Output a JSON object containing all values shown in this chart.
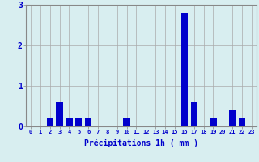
{
  "hours": [
    0,
    1,
    2,
    3,
    4,
    5,
    6,
    7,
    8,
    9,
    10,
    11,
    12,
    13,
    14,
    15,
    16,
    17,
    18,
    19,
    20,
    21,
    22,
    23
  ],
  "values": [
    0,
    0,
    0.2,
    0.6,
    0.2,
    0.2,
    0.2,
    0,
    0,
    0,
    0.2,
    0,
    0,
    0,
    0,
    0,
    2.8,
    0.6,
    0,
    0.2,
    0,
    0.4,
    0.2,
    0
  ],
  "bar_color": "#0000cc",
  "background_color": "#d8eef0",
  "grid_color": "#aaaaaa",
  "xlabel": "Précipitations 1h ( mm )",
  "xlabel_color": "#0000cc",
  "tick_color": "#0000cc",
  "spine_color": "#888888",
  "ylim": [
    0,
    3
  ],
  "yticks": [
    0,
    1,
    2,
    3
  ],
  "title": ""
}
